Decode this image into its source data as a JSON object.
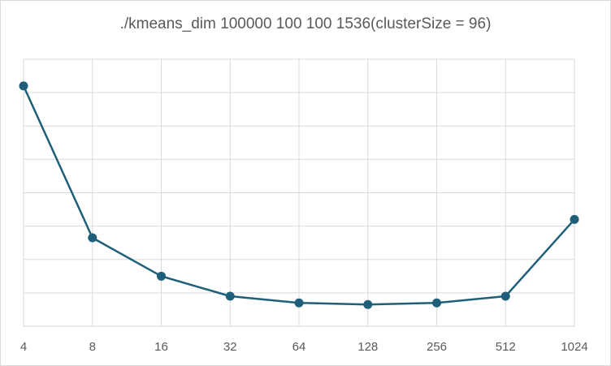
{
  "chart_data": {
    "type": "line",
    "title": "./kmeans_dim 100000 100 100 1536(clusterSize = 96)",
    "xlabel": "",
    "ylabel": "",
    "categories": [
      "4",
      "8",
      "16",
      "32",
      "64",
      "128",
      "256",
      "512",
      "1024"
    ],
    "series": [
      {
        "values": [
          7.2,
          2.65,
          1.5,
          0.9,
          0.7,
          0.65,
          0.7,
          0.9,
          3.2
        ]
      }
    ],
    "ylim": [
      0,
      8
    ],
    "y_axis_labels_shown": false,
    "grid": {
      "horizontal": true,
      "vertical": true
    },
    "legend": "none",
    "colors": {
      "series": "#1f5f7a",
      "grid": "#d9d9d9",
      "text": "#595959"
    }
  }
}
